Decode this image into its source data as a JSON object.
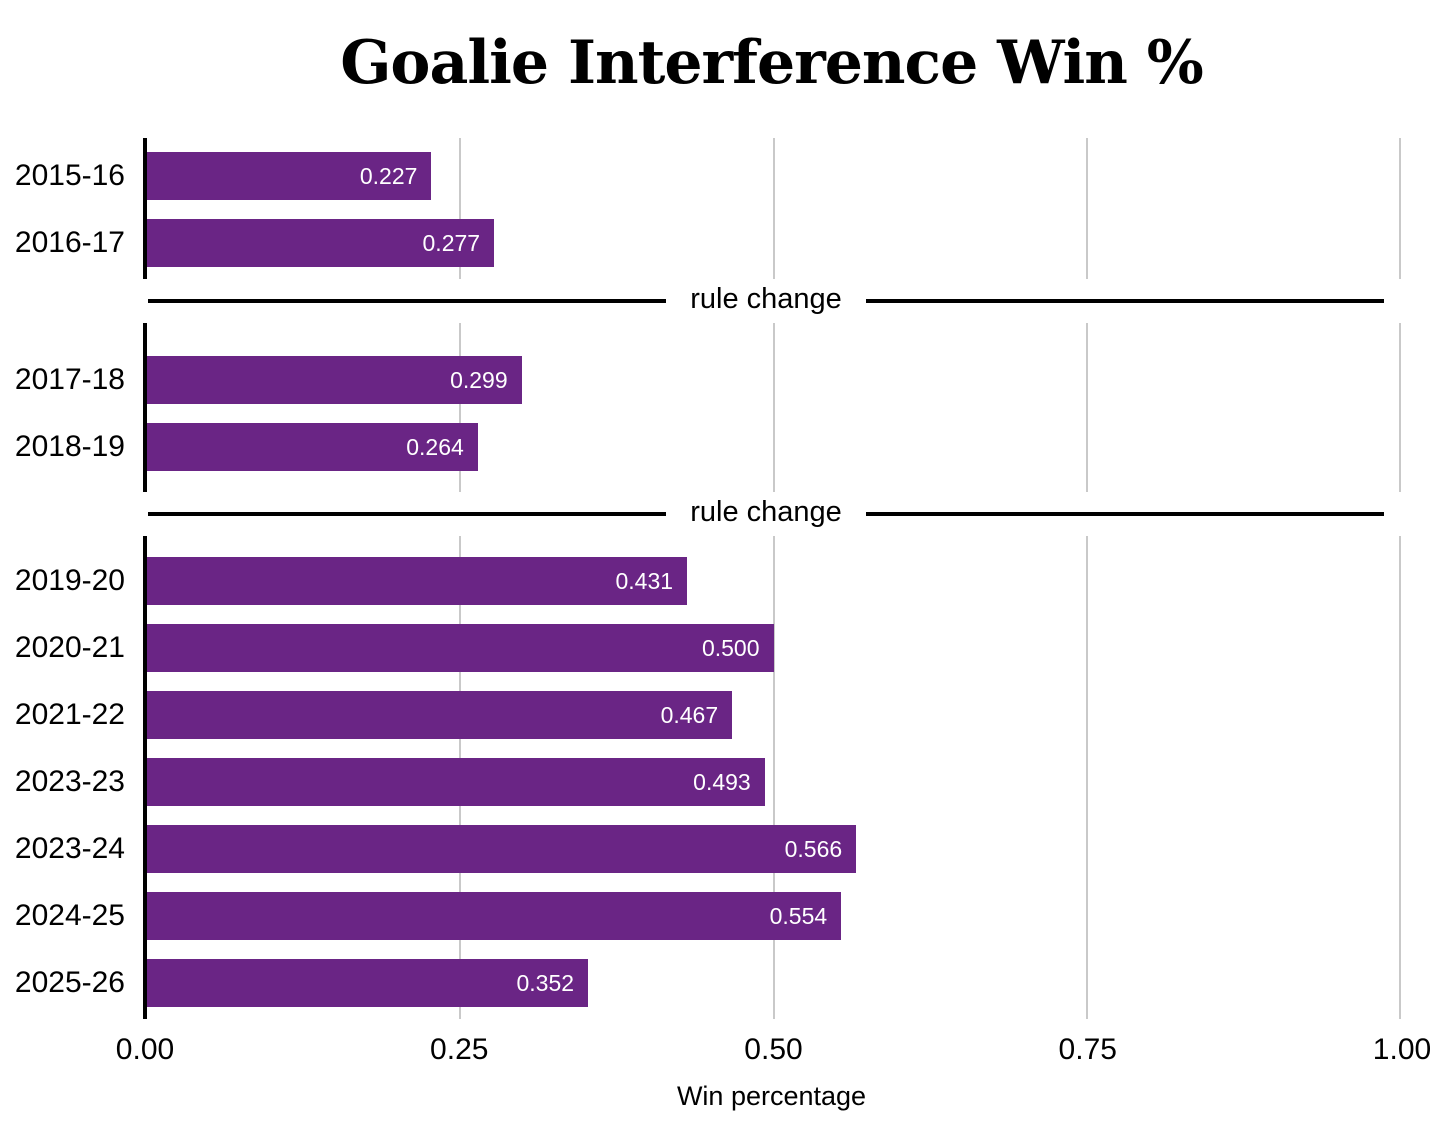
{
  "chart_data": {
    "type": "bar",
    "orientation": "horizontal",
    "title": "Goalie Interference Win %",
    "xlabel": "Win percentage",
    "xlim": [
      0,
      1.0
    ],
    "xticks": [
      "0.00",
      "0.25",
      "0.50",
      "0.75",
      "1.00"
    ],
    "grid": true,
    "legend": false,
    "bar_color": "#6a2585",
    "grid_color": "#c9c9c9",
    "axis_color": "#000000",
    "value_text_color": "#ffffff",
    "sections": [
      {
        "bars": [
          {
            "label": "2015-16",
            "value": 0.227,
            "value_label": "0.227"
          },
          {
            "label": "2016-17",
            "value": 0.277,
            "value_label": "0.277"
          }
        ]
      },
      {
        "bars": [
          {
            "label": "2017-18",
            "value": 0.299,
            "value_label": "0.299"
          },
          {
            "label": "2018-19",
            "value": 0.264,
            "value_label": "0.264"
          }
        ]
      },
      {
        "bars": [
          {
            "label": "2019-20",
            "value": 0.431,
            "value_label": "0.431"
          },
          {
            "label": "2020-21",
            "value": 0.5,
            "value_label": "0.500"
          },
          {
            "label": "2021-22",
            "value": 0.467,
            "value_label": "0.467"
          },
          {
            "label": "2023-23",
            "value": 0.493,
            "value_label": "0.493"
          },
          {
            "label": "2023-24",
            "value": 0.566,
            "value_label": "0.566"
          },
          {
            "label": "2024-25",
            "value": 0.554,
            "value_label": "0.554"
          },
          {
            "label": "2025-26",
            "value": 0.352,
            "value_label": "0.352"
          }
        ]
      }
    ],
    "dividers": [
      {
        "label": "rule change"
      },
      {
        "label": "rule change"
      }
    ]
  }
}
